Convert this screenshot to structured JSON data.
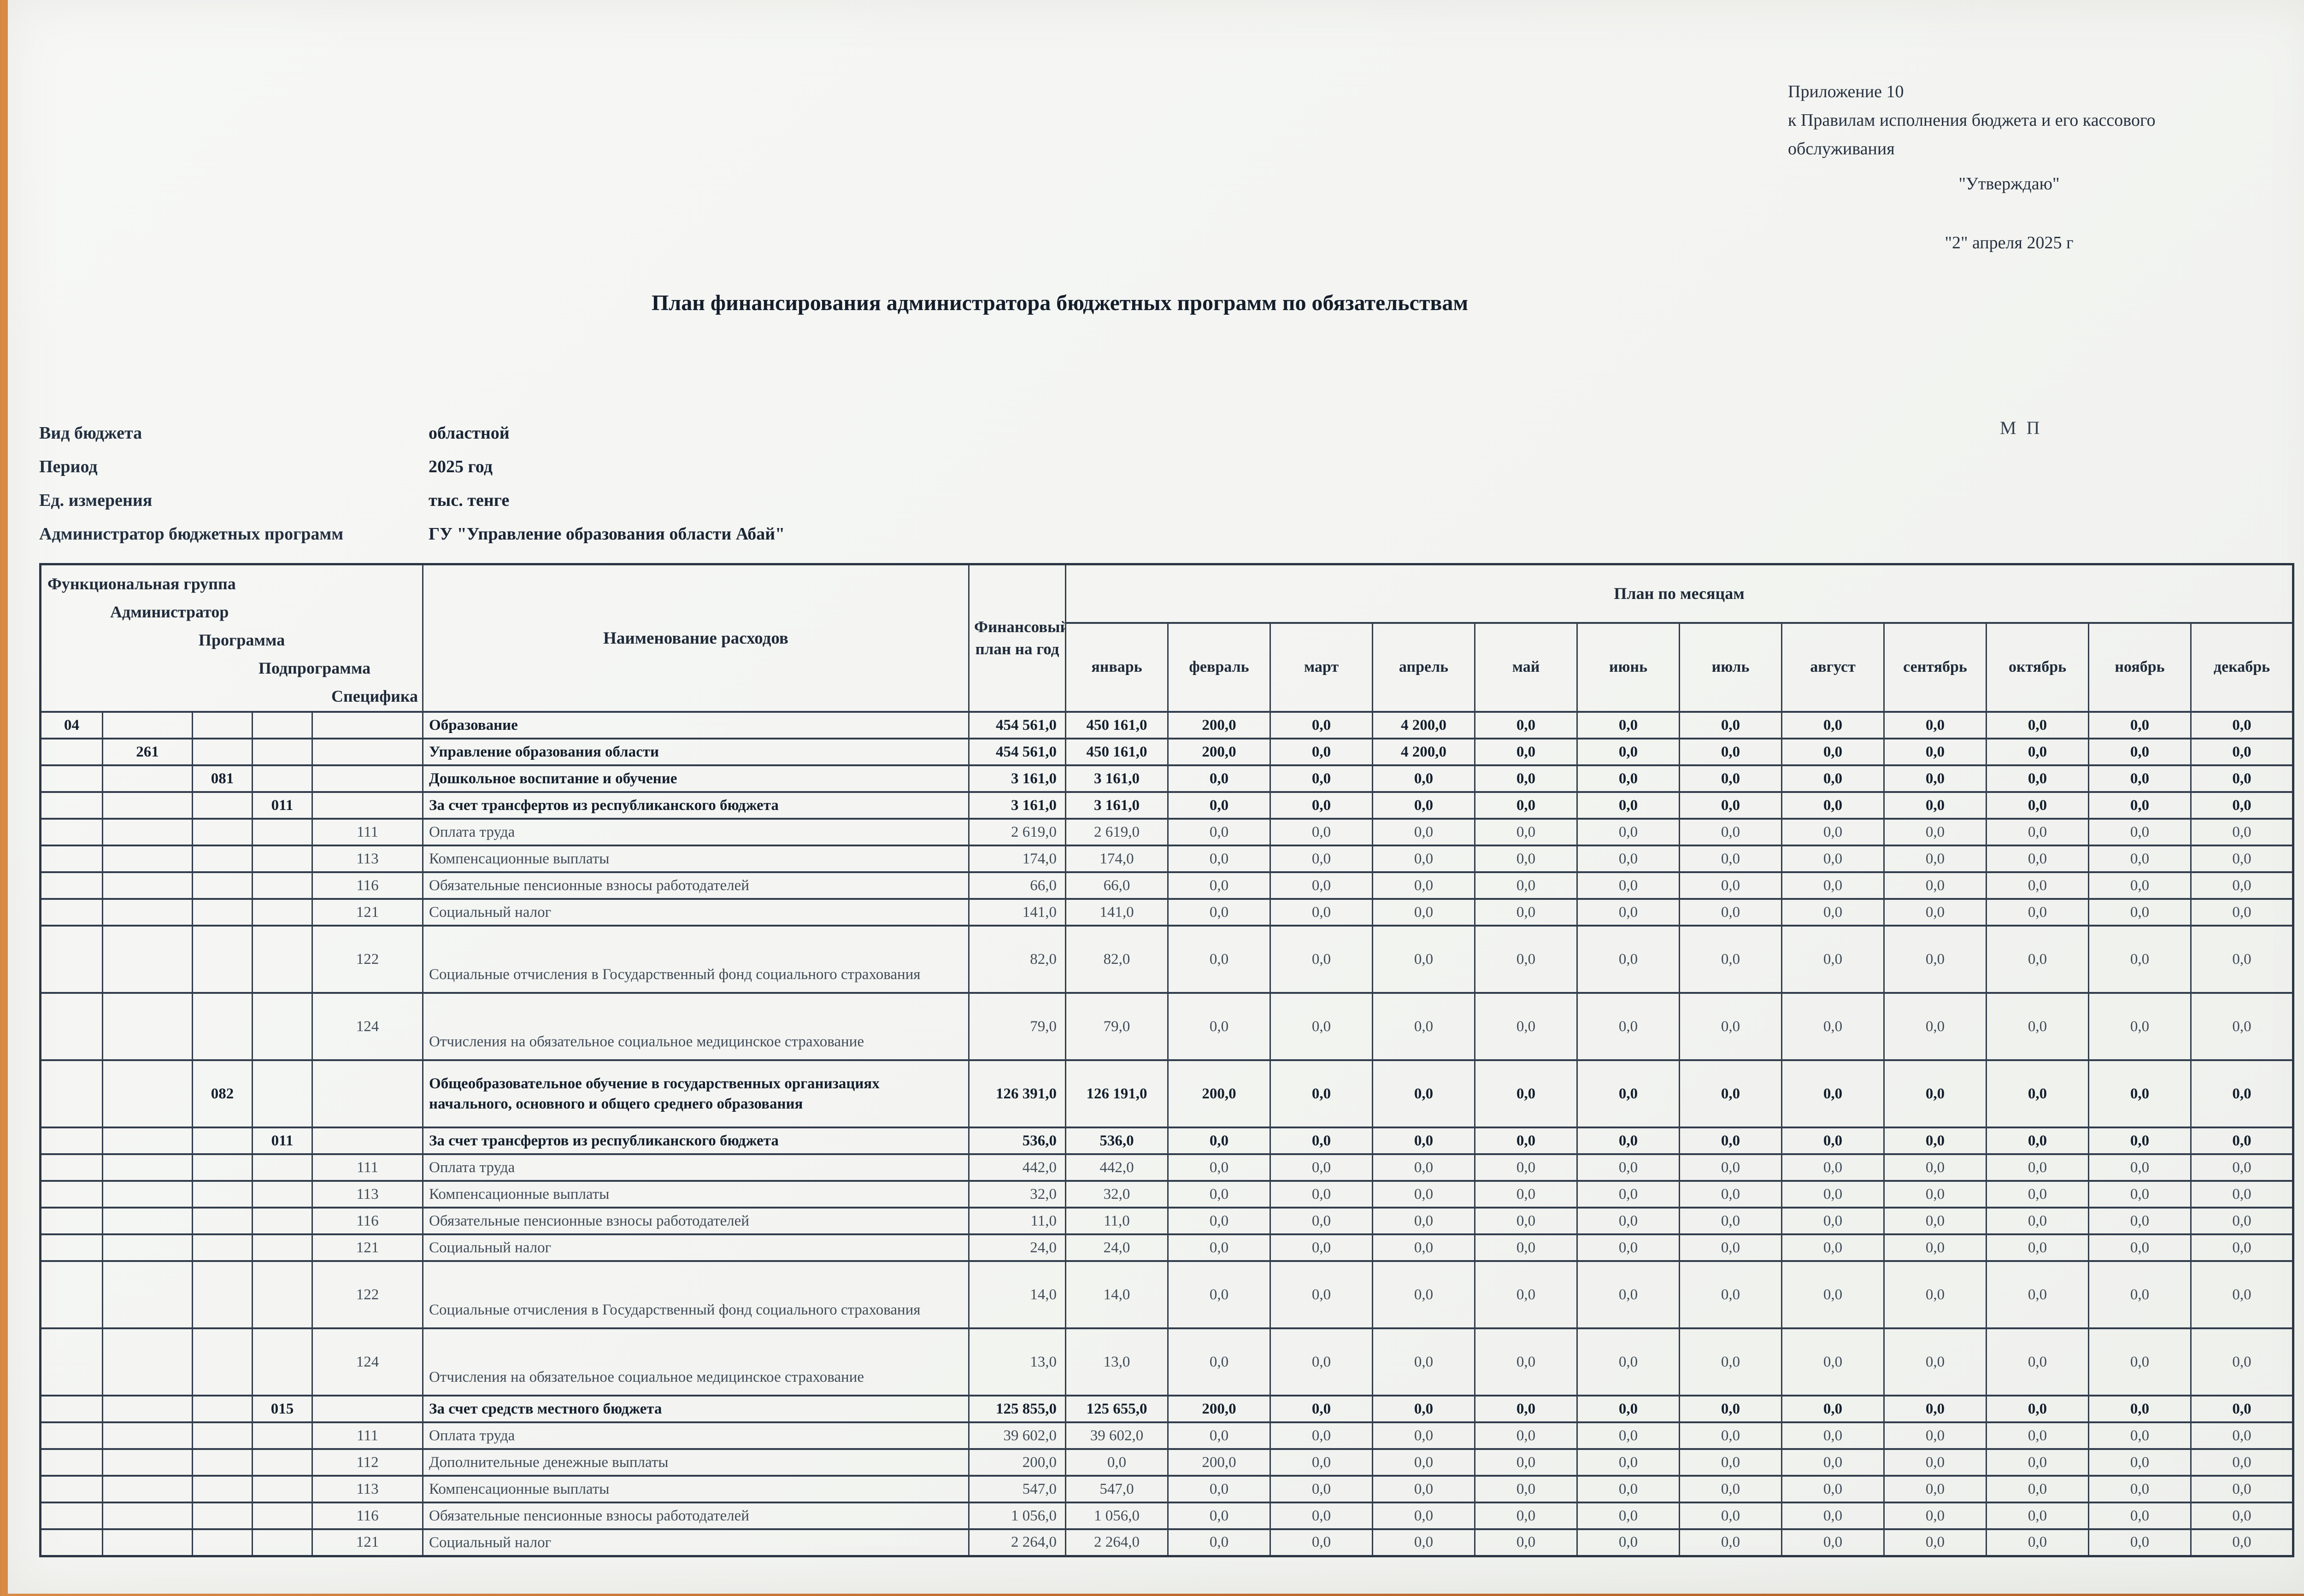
{
  "page": {
    "appendix_line1": "Приложение 10",
    "appendix_line2": "к Правилам исполнения бюджета и его кассового обслуживания",
    "approve": "\"Утверждаю\"",
    "approve_date": "\"2\" апреля 2025 г",
    "title": "План финансирования администратора бюджетных программ по обязательствам",
    "stamp": "М П",
    "colors": {
      "paper": "#f5f6f3",
      "desk_edge": "#c06a2e",
      "ink": "#1d2733",
      "table_line": "#323d4d"
    }
  },
  "meta": {
    "items": [
      {
        "label": "Вид бюджета",
        "value": "областной"
      },
      {
        "label": "Период",
        "value": "2025 год"
      },
      {
        "label": "Ед. измерения",
        "value": "тыс. тенге"
      },
      {
        "label": "Администратор бюджетных программ",
        "value": "ГУ \"Управление образования области Абай\""
      }
    ]
  },
  "table": {
    "header": {
      "hierarchy": [
        "Функциональная группа",
        "Администратор",
        "Программа",
        "Подпрограмма",
        "Специфика"
      ],
      "name_col": "Наименование расходов",
      "plan_col": "Финансовый план на год",
      "months_group": "План по месяцам",
      "months": [
        "январь",
        "февраль",
        "март",
        "апрель",
        "май",
        "июнь",
        "июль",
        "август",
        "сентябрь",
        "октябрь",
        "ноябрь",
        "декабрь"
      ]
    },
    "rows": [
      {
        "codes": [
          "04",
          "",
          "",
          "",
          ""
        ],
        "name": "Образование",
        "bold": true,
        "year": "454 561,0",
        "months": [
          "450 161,0",
          "200,0",
          "0,0",
          "4 200,0",
          "0,0",
          "0,0",
          "0,0",
          "0,0",
          "0,0",
          "0,0",
          "0,0",
          "0,0"
        ]
      },
      {
        "codes": [
          "",
          "261",
          "",
          "",
          ""
        ],
        "name": "Управление образования области",
        "bold": true,
        "year": "454 561,0",
        "months": [
          "450 161,0",
          "200,0",
          "0,0",
          "4 200,0",
          "0,0",
          "0,0",
          "0,0",
          "0,0",
          "0,0",
          "0,0",
          "0,0",
          "0,0"
        ]
      },
      {
        "codes": [
          "",
          "",
          "081",
          "",
          ""
        ],
        "name": "Дошкольное воспитание и обучение",
        "bold": true,
        "year": "3 161,0",
        "months": [
          "3 161,0",
          "0,0",
          "0,0",
          "0,0",
          "0,0",
          "0,0",
          "0,0",
          "0,0",
          "0,0",
          "0,0",
          "0,0",
          "0,0"
        ]
      },
      {
        "codes": [
          "",
          "",
          "",
          "011",
          ""
        ],
        "name": "За счет трансфертов из республиканского бюджета",
        "bold": true,
        "year": "3 161,0",
        "months": [
          "3 161,0",
          "0,0",
          "0,0",
          "0,0",
          "0,0",
          "0,0",
          "0,0",
          "0,0",
          "0,0",
          "0,0",
          "0,0",
          "0,0"
        ]
      },
      {
        "codes": [
          "",
          "",
          "",
          "",
          "111"
        ],
        "name": "Оплата труда",
        "bold": false,
        "year": "2 619,0",
        "months": [
          "2 619,0",
          "0,0",
          "0,0",
          "0,0",
          "0,0",
          "0,0",
          "0,0",
          "0,0",
          "0,0",
          "0,0",
          "0,0",
          "0,0"
        ]
      },
      {
        "codes": [
          "",
          "",
          "",
          "",
          "113"
        ],
        "name": "Компенсационные выплаты",
        "bold": false,
        "year": "174,0",
        "months": [
          "174,0",
          "0,0",
          "0,0",
          "0,0",
          "0,0",
          "0,0",
          "0,0",
          "0,0",
          "0,0",
          "0,0",
          "0,0",
          "0,0"
        ]
      },
      {
        "codes": [
          "",
          "",
          "",
          "",
          "116"
        ],
        "name": "Обязательные пенсионные взносы работодателей",
        "bold": false,
        "year": "66,0",
        "months": [
          "66,0",
          "0,0",
          "0,0",
          "0,0",
          "0,0",
          "0,0",
          "0,0",
          "0,0",
          "0,0",
          "0,0",
          "0,0",
          "0,0"
        ]
      },
      {
        "codes": [
          "",
          "",
          "",
          "",
          "121"
        ],
        "name": "Социальный налог",
        "bold": false,
        "year": "141,0",
        "months": [
          "141,0",
          "0,0",
          "0,0",
          "0,0",
          "0,0",
          "0,0",
          "0,0",
          "0,0",
          "0,0",
          "0,0",
          "0,0",
          "0,0"
        ]
      },
      {
        "codes": [
          "",
          "",
          "",
          "",
          "122"
        ],
        "name": "Социальные отчисления в Государственный фонд социального страхования",
        "bold": false,
        "year": "82,0",
        "months": [
          "82,0",
          "0,0",
          "0,0",
          "0,0",
          "0,0",
          "0,0",
          "0,0",
          "0,0",
          "0,0",
          "0,0",
          "0,0",
          "0,0"
        ]
      },
      {
        "codes": [
          "",
          "",
          "",
          "",
          "124"
        ],
        "name": "Отчисления на обязательное социальное медицинское страхование",
        "bold": false,
        "year": "79,0",
        "months": [
          "79,0",
          "0,0",
          "0,0",
          "0,0",
          "0,0",
          "0,0",
          "0,0",
          "0,0",
          "0,0",
          "0,0",
          "0,0",
          "0,0"
        ]
      },
      {
        "codes": [
          "",
          "",
          "082",
          "",
          ""
        ],
        "name": "Общеобразовательное обучение в государственных организациях начального, основного и общего среднего образования",
        "bold": true,
        "year": "126 391,0",
        "months": [
          "126 191,0",
          "200,0",
          "0,0",
          "0,0",
          "0,0",
          "0,0",
          "0,0",
          "0,0",
          "0,0",
          "0,0",
          "0,0",
          "0,0"
        ]
      },
      {
        "codes": [
          "",
          "",
          "",
          "011",
          ""
        ],
        "name": "За счет трансфертов из республиканского бюджета",
        "bold": true,
        "year": "536,0",
        "months": [
          "536,0",
          "0,0",
          "0,0",
          "0,0",
          "0,0",
          "0,0",
          "0,0",
          "0,0",
          "0,0",
          "0,0",
          "0,0",
          "0,0"
        ]
      },
      {
        "codes": [
          "",
          "",
          "",
          "",
          "111"
        ],
        "name": "Оплата труда",
        "bold": false,
        "year": "442,0",
        "months": [
          "442,0",
          "0,0",
          "0,0",
          "0,0",
          "0,0",
          "0,0",
          "0,0",
          "0,0",
          "0,0",
          "0,0",
          "0,0",
          "0,0"
        ]
      },
      {
        "codes": [
          "",
          "",
          "",
          "",
          "113"
        ],
        "name": "Компенсационные выплаты",
        "bold": false,
        "year": "32,0",
        "months": [
          "32,0",
          "0,0",
          "0,0",
          "0,0",
          "0,0",
          "0,0",
          "0,0",
          "0,0",
          "0,0",
          "0,0",
          "0,0",
          "0,0"
        ]
      },
      {
        "codes": [
          "",
          "",
          "",
          "",
          "116"
        ],
        "name": "Обязательные пенсионные взносы работодателей",
        "bold": false,
        "year": "11,0",
        "months": [
          "11,0",
          "0,0",
          "0,0",
          "0,0",
          "0,0",
          "0,0",
          "0,0",
          "0,0",
          "0,0",
          "0,0",
          "0,0",
          "0,0"
        ]
      },
      {
        "codes": [
          "",
          "",
          "",
          "",
          "121"
        ],
        "name": "Социальный налог",
        "bold": false,
        "year": "24,0",
        "months": [
          "24,0",
          "0,0",
          "0,0",
          "0,0",
          "0,0",
          "0,0",
          "0,0",
          "0,0",
          "0,0",
          "0,0",
          "0,0",
          "0,0"
        ]
      },
      {
        "codes": [
          "",
          "",
          "",
          "",
          "122"
        ],
        "name": "Социальные отчисления в Государственный фонд социального страхования",
        "bold": false,
        "year": "14,0",
        "months": [
          "14,0",
          "0,0",
          "0,0",
          "0,0",
          "0,0",
          "0,0",
          "0,0",
          "0,0",
          "0,0",
          "0,0",
          "0,0",
          "0,0"
        ]
      },
      {
        "codes": [
          "",
          "",
          "",
          "",
          "124"
        ],
        "name": "Отчисления на обязательное социальное медицинское страхование",
        "bold": false,
        "year": "13,0",
        "months": [
          "13,0",
          "0,0",
          "0,0",
          "0,0",
          "0,0",
          "0,0",
          "0,0",
          "0,0",
          "0,0",
          "0,0",
          "0,0",
          "0,0"
        ]
      },
      {
        "codes": [
          "",
          "",
          "",
          "015",
          ""
        ],
        "name": "За счет средств местного бюджета",
        "bold": true,
        "year": "125 855,0",
        "months": [
          "125 655,0",
          "200,0",
          "0,0",
          "0,0",
          "0,0",
          "0,0",
          "0,0",
          "0,0",
          "0,0",
          "0,0",
          "0,0",
          "0,0"
        ]
      },
      {
        "codes": [
          "",
          "",
          "",
          "",
          "111"
        ],
        "name": "Оплата труда",
        "bold": false,
        "year": "39 602,0",
        "months": [
          "39 602,0",
          "0,0",
          "0,0",
          "0,0",
          "0,0",
          "0,0",
          "0,0",
          "0,0",
          "0,0",
          "0,0",
          "0,0",
          "0,0"
        ]
      },
      {
        "codes": [
          "",
          "",
          "",
          "",
          "112"
        ],
        "name": "Дополнительные денежные выплаты",
        "bold": false,
        "year": "200,0",
        "months": [
          "0,0",
          "200,0",
          "0,0",
          "0,0",
          "0,0",
          "0,0",
          "0,0",
          "0,0",
          "0,0",
          "0,0",
          "0,0",
          "0,0"
        ]
      },
      {
        "codes": [
          "",
          "",
          "",
          "",
          "113"
        ],
        "name": "Компенсационные выплаты",
        "bold": false,
        "year": "547,0",
        "months": [
          "547,0",
          "0,0",
          "0,0",
          "0,0",
          "0,0",
          "0,0",
          "0,0",
          "0,0",
          "0,0",
          "0,0",
          "0,0",
          "0,0"
        ]
      },
      {
        "codes": [
          "",
          "",
          "",
          "",
          "116"
        ],
        "name": "Обязательные пенсионные взносы работодателей",
        "bold": false,
        "year": "1 056,0",
        "months": [
          "1 056,0",
          "0,0",
          "0,0",
          "0,0",
          "0,0",
          "0,0",
          "0,0",
          "0,0",
          "0,0",
          "0,0",
          "0,0",
          "0,0"
        ]
      },
      {
        "codes": [
          "",
          "",
          "",
          "",
          "121"
        ],
        "name": "Социальный налог",
        "bold": false,
        "year": "2 264,0",
        "months": [
          "2 264,0",
          "0,0",
          "0,0",
          "0,0",
          "0,0",
          "0,0",
          "0,0",
          "0,0",
          "0,0",
          "0,0",
          "0,0",
          "0,0"
        ]
      }
    ]
  }
}
